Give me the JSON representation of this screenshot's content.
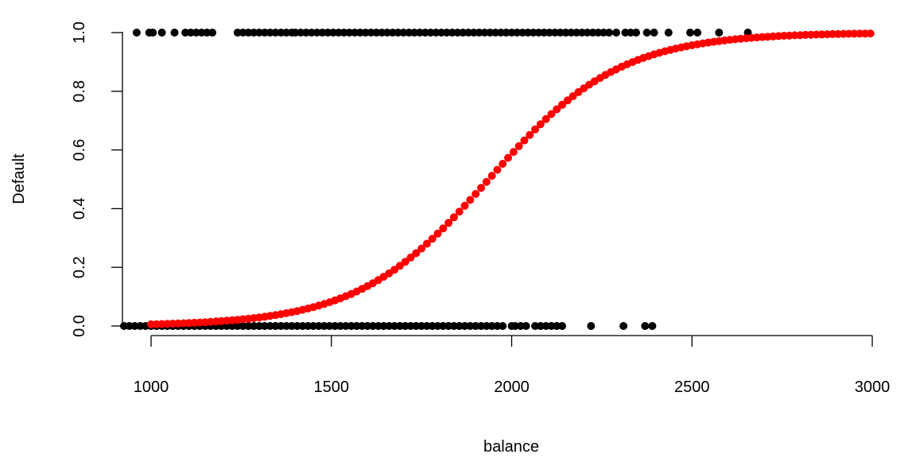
{
  "chart_data": {
    "type": "scatter",
    "title": "",
    "xlabel": "balance",
    "ylabel": "Default",
    "xlim": [
      920,
      3000
    ],
    "ylim": [
      -0.03,
      1.0
    ],
    "x_ticks": [
      1000,
      1500,
      2000,
      2500,
      3000
    ],
    "x_tick_labels": [
      "1000",
      "1500",
      "2000",
      "2500",
      "3000"
    ],
    "y_ticks": [
      0.0,
      0.2,
      0.4,
      0.6,
      0.8,
      1.0
    ],
    "y_tick_labels": [
      "0.0",
      "0.2",
      "0.4",
      "0.6",
      "0.8",
      "1.0"
    ],
    "grid": false,
    "colors": {
      "observed": "#000000",
      "fitted": "#ff0000",
      "axis": "#000000"
    },
    "series": [
      {
        "name": "observed_default_yes",
        "y": 1,
        "x": [
          960,
          995,
          1005,
          1030,
          1065,
          1095,
          1110,
          1125,
          1140,
          1155,
          1170,
          1240,
          1255,
          1270,
          1285,
          1300,
          1315,
          1330,
          1345,
          1360,
          1375,
          1390,
          1400,
          1415,
          1430,
          1445,
          1460,
          1475,
          1490,
          1505,
          1520,
          1535,
          1550,
          1565,
          1580,
          1595,
          1610,
          1625,
          1640,
          1655,
          1670,
          1685,
          1700,
          1715,
          1730,
          1745,
          1760,
          1775,
          1790,
          1805,
          1820,
          1835,
          1850,
          1865,
          1880,
          1895,
          1910,
          1925,
          1940,
          1955,
          1970,
          1985,
          2000,
          2015,
          2030,
          2045,
          2060,
          2075,
          2090,
          2105,
          2120,
          2135,
          2150,
          2165,
          2180,
          2195,
          2210,
          2225,
          2240,
          2255,
          2270,
          2290,
          2315,
          2330,
          2345,
          2375,
          2395,
          2435,
          2495,
          2515,
          2575,
          2655
        ]
      },
      {
        "name": "observed_default_no",
        "y": 0,
        "x": [
          925,
          940,
          955,
          970,
          985,
          1000,
          1015,
          1030,
          1045,
          1060,
          1075,
          1090,
          1105,
          1120,
          1135,
          1150,
          1165,
          1180,
          1195,
          1210,
          1225,
          1240,
          1255,
          1270,
          1285,
          1300,
          1315,
          1330,
          1345,
          1360,
          1375,
          1390,
          1405,
          1420,
          1435,
          1450,
          1465,
          1480,
          1495,
          1510,
          1525,
          1540,
          1555,
          1570,
          1585,
          1600,
          1615,
          1630,
          1645,
          1660,
          1675,
          1690,
          1705,
          1720,
          1735,
          1750,
          1765,
          1780,
          1795,
          1810,
          1825,
          1840,
          1855,
          1870,
          1885,
          1900,
          1915,
          1930,
          1945,
          1960,
          1975,
          2000,
          2010,
          2025,
          2040,
          2065,
          2080,
          2095,
          2110,
          2125,
          2140,
          2220,
          2310,
          2370,
          2390
        ]
      },
      {
        "name": "fitted_probability",
        "model": "logistic",
        "x_start": 1000,
        "x_end": 3000,
        "x_step": 15,
        "intercept": -10.65,
        "slope": 0.0055
      }
    ]
  }
}
